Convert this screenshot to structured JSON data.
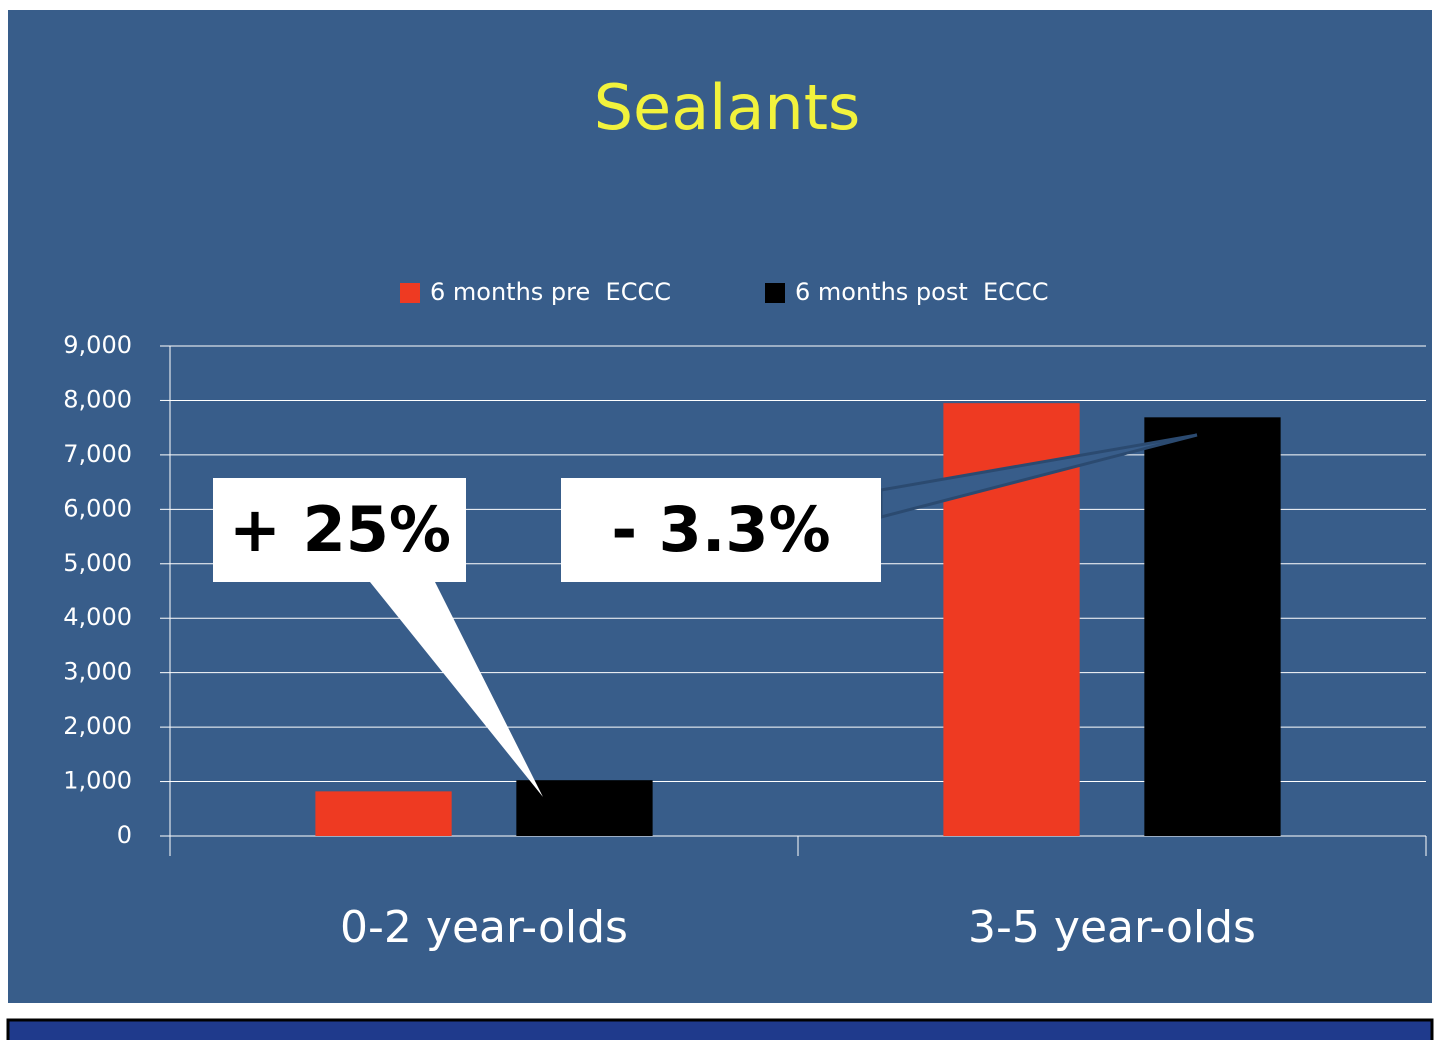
{
  "chart_data": {
    "type": "bar",
    "title": "Sealants",
    "categories": [
      "0-2 year-olds",
      "3-5 year-olds"
    ],
    "series": [
      {
        "name": "6 months pre  ECCC",
        "color": "#ee3a22",
        "values": [
          820,
          7950
        ]
      },
      {
        "name": "6 months post  ECCC",
        "color": "#000000",
        "values": [
          1025,
          7690
        ]
      }
    ],
    "ylim": [
      0,
      9000
    ],
    "yticks": [
      0,
      {
        "value": 1000,
        "label": "1,000"
      },
      {
        "value": 2000,
        "label": "2,000"
      },
      {
        "value": 3000,
        "label": "3,000"
      },
      {
        "value": 4000,
        "label": "4,000"
      },
      {
        "value": 5000,
        "label": "5,000"
      },
      {
        "value": 6000,
        "label": "6,000"
      },
      {
        "value": 7000,
        "label": "7,000"
      },
      {
        "value": 8000,
        "label": "8,000"
      },
      {
        "value": 9000,
        "label": "9,000"
      }
    ],
    "grid": true,
    "legend": "top",
    "annotations": [
      "+ 25%",
      "- 3.3%"
    ]
  }
}
